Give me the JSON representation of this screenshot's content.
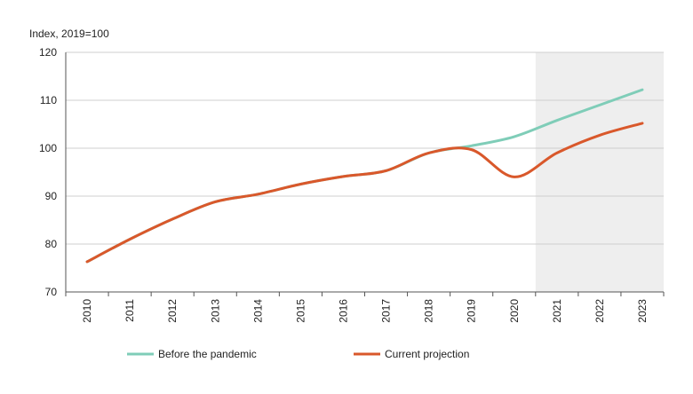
{
  "chart_data": {
    "type": "line",
    "ylabel": "Index, 2019=100",
    "ylim": [
      70,
      120
    ],
    "yticks": [
      70,
      80,
      90,
      100,
      110,
      120
    ],
    "grid": "horizontal",
    "categories": [
      "2010",
      "2011",
      "2012",
      "2013",
      "2014",
      "2015",
      "2016",
      "2017",
      "2018",
      "2019",
      "2020",
      "2021",
      "2022",
      "2023"
    ],
    "shaded_period": [
      "2021",
      "2023"
    ],
    "legend_position": "bottom",
    "series": [
      {
        "name": "Before the pandemic",
        "color": "#7fcdb8",
        "values": [
          76.3,
          81.0,
          85.2,
          88.8,
          90.4,
          92.5,
          94.1,
          95.3,
          99.0,
          100.5,
          102.4,
          105.8,
          109.0,
          112.2
        ]
      },
      {
        "name": "Current projection",
        "color": "#d9582b",
        "values": [
          76.3,
          81.0,
          85.2,
          88.8,
          90.4,
          92.5,
          94.1,
          95.3,
          99.0,
          99.7,
          94.0,
          99.0,
          102.7,
          105.2
        ]
      }
    ]
  }
}
